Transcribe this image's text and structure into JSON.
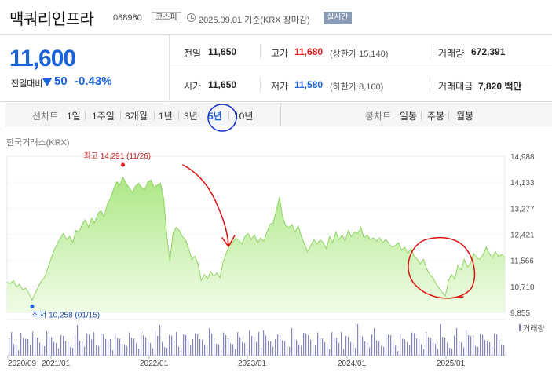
{
  "header": {
    "name": "맥쿼리인프라",
    "code": "088980",
    "market": "코스피",
    "date": "2025.09.01 기준(KRX 장마감)",
    "realtime": "실시간"
  },
  "summary": {
    "price": "11,600",
    "prev_label": "전일대비",
    "change": "50",
    "change_pct": "-0.43%",
    "direction_icon": "down-triangle-icon",
    "prev_close_label": "전일",
    "prev_close": "11,650",
    "high_label": "고가",
    "high": "11,680",
    "upper_limit": "(상한가 15,140)",
    "volume_label": "거래량",
    "volume": "672,391",
    "open_label": "시가",
    "open": "11,650",
    "low_label": "저가",
    "low": "11,580",
    "lower_limit": "(하한가 8,160)",
    "amount_label": "거래대금",
    "amount": "7,820 백만"
  },
  "tabs": {
    "line_label": "선차트",
    "line": [
      "1일",
      "1주일",
      "3개월",
      "1년",
      "3년",
      "5년",
      "10년"
    ],
    "active": "5년",
    "candle_label": "봉차트",
    "candle": [
      "일봉",
      "주봉",
      "월봉"
    ]
  },
  "source": "한국거래소(KRX)",
  "colors": {
    "up": "#e01c1c",
    "down": "#1a62d8",
    "area_top": "#a8e67e",
    "line": "#8fd463",
    "annotation": "#e01010",
    "circle": "#1530c8"
  },
  "chart_data": {
    "type": "area",
    "y_ticks": [
      "14,988",
      "14,133",
      "13,277",
      "12,421",
      "11,566",
      "10,710",
      "9,855"
    ],
    "ylim": [
      9855,
      14988
    ],
    "x_labels": [
      "2020/09",
      "2021/01",
      "2022/01",
      "2023/01",
      "2024/01",
      "2025/01"
    ],
    "max_label": "최고 14,291 (11/26)",
    "min_label": "최저 10,258 (01/15)",
    "volume_label": "거래량",
    "series": [
      {
        "values": [
          10850,
          10800,
          10900,
          10700,
          10780,
          10600,
          10650,
          10480,
          10258,
          10500,
          10700,
          10900,
          11000,
          11300,
          11600,
          11900,
          12100,
          12300,
          12450,
          12250,
          12350,
          12150,
          12550,
          12500,
          12750,
          12900,
          12650,
          12950,
          12800,
          13100,
          13200,
          13000,
          13400,
          13600,
          13900,
          14150,
          14050,
          14291,
          14100,
          13950,
          13800,
          14000,
          14100,
          13950,
          13900,
          14150,
          14200,
          13950,
          14050,
          14100,
          13600,
          12400,
          11550,
          12450,
          12650,
          12550,
          12350,
          12250,
          11950,
          11600,
          11700,
          11450,
          10900,
          11100,
          10950,
          11200,
          11050,
          11150,
          11000,
          11500,
          11800,
          12050,
          12150,
          12300,
          12250,
          12100,
          12350,
          12450,
          12250,
          12400,
          12150,
          12300,
          12200,
          12500,
          12750,
          12800,
          13200,
          13650,
          13000,
          12700,
          12650,
          12750,
          12500,
          12700,
          12350,
          12100,
          11850,
          12050,
          12250,
          12100,
          12250,
          12150,
          11950,
          12350,
          12150,
          12500,
          12250,
          12400,
          12200,
          12550,
          12350,
          12500,
          12450,
          12650,
          12300,
          12400,
          12250,
          12300,
          12200,
          12300,
          12150,
          12250,
          12100,
          12000,
          12050,
          12150,
          11900,
          12000,
          11800,
          11950,
          11700,
          11600,
          11450,
          11600,
          11300,
          11100,
          11000,
          10800,
          10650,
          10500,
          10400,
          10900,
          11100,
          10950,
          11400,
          11250,
          11600,
          11350,
          11450,
          11800,
          11650,
          11600,
          11750,
          12000,
          11800,
          11650,
          11850,
          11700,
          11750,
          11650
        ]
      }
    ]
  }
}
